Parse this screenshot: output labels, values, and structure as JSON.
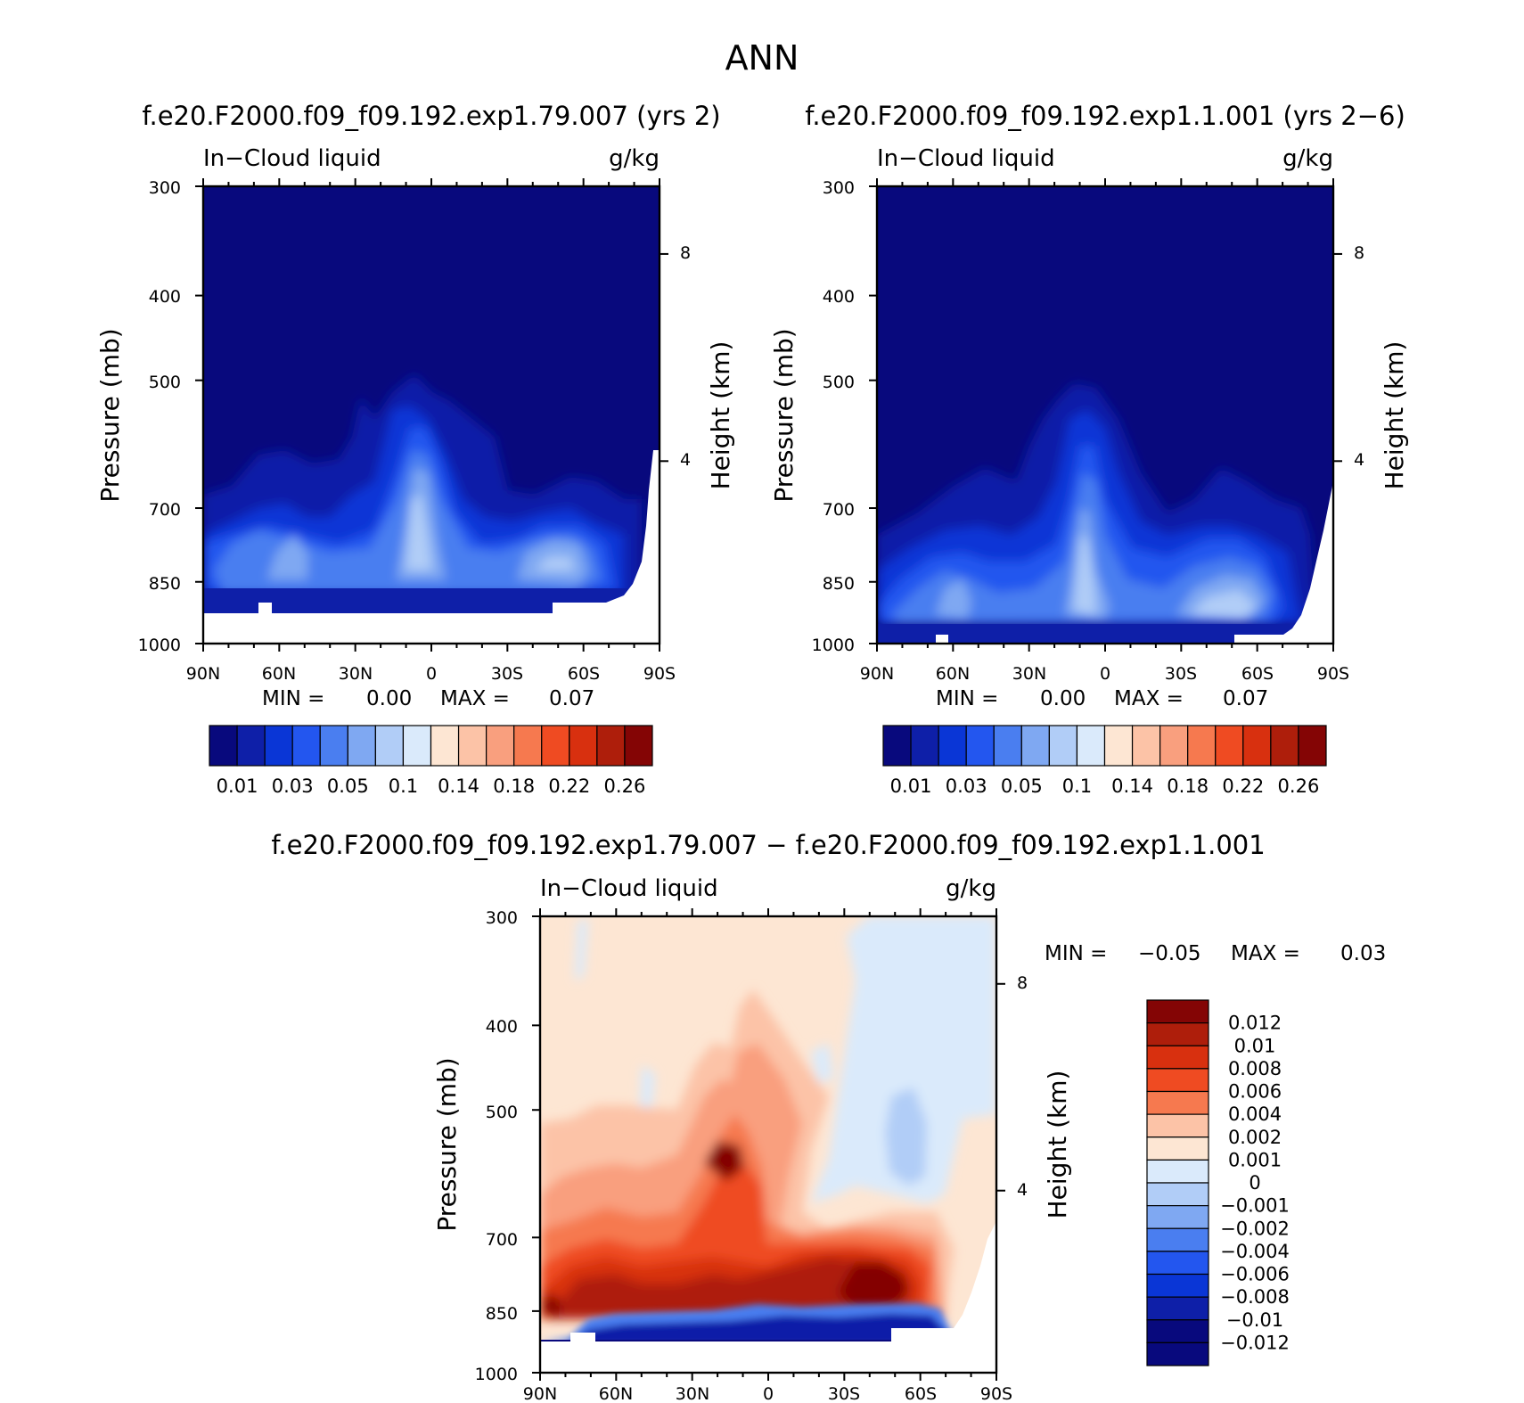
{
  "figure_title": "ANN",
  "chart_data": [
    {
      "type": "heatmap",
      "id": "top-left",
      "title": "f.e20.F2000.f09_f09.192.exp1.79.007 (yrs 2)",
      "left_label": "In−Cloud liquid",
      "right_label": "g/kg",
      "ylabel": "Pressure (mb)",
      "y2label": "Height (km)",
      "xticks": [
        "90N",
        "60N",
        "30N",
        "0",
        "30S",
        "60S",
        "90S"
      ],
      "yticks": [
        "300",
        "400",
        "500",
        "700",
        "850",
        "1000"
      ],
      "y2ticks": [
        "8",
        "4"
      ],
      "stats": {
        "min_label": "MIN =",
        "min_value": "0.00",
        "max_label": "MAX =",
        "max_value": "0.07"
      },
      "colorbar": {
        "orientation": "horizontal",
        "colors": [
          "#08097d",
          "#0e1fa8",
          "#0a36d6",
          "#2356ef",
          "#4a7ef0",
          "#7fa8f2",
          "#b1cdf7",
          "#daeafb",
          "#fde6d3",
          "#fcc3a7",
          "#f99f7e",
          "#f6794f",
          "#ef4b22",
          "#d8300f",
          "#ae1e0b",
          "#840505"
        ],
        "labels": [
          "0.01",
          "0.03",
          "0.05",
          "0.1",
          "0.14",
          "0.18",
          "0.22",
          "0.26"
        ]
      }
    },
    {
      "type": "heatmap",
      "id": "top-right",
      "title": "f.e20.F2000.f09_f09.192.exp1.1.001 (yrs 2−6)",
      "left_label": "In−Cloud liquid",
      "right_label": "g/kg",
      "ylabel": "Pressure (mb)",
      "y2label": "Height (km)",
      "xticks": [
        "90N",
        "60N",
        "30N",
        "0",
        "30S",
        "60S",
        "90S"
      ],
      "yticks": [
        "300",
        "400",
        "500",
        "700",
        "850",
        "1000"
      ],
      "y2ticks": [
        "8",
        "4"
      ],
      "stats": {
        "min_label": "MIN =",
        "min_value": "0.00",
        "max_label": "MAX =",
        "max_value": "0.07"
      },
      "colorbar": {
        "orientation": "horizontal",
        "colors": [
          "#08097d",
          "#0e1fa8",
          "#0a36d6",
          "#2356ef",
          "#4a7ef0",
          "#7fa8f2",
          "#b1cdf7",
          "#daeafb",
          "#fde6d3",
          "#fcc3a7",
          "#f99f7e",
          "#f6794f",
          "#ef4b22",
          "#d8300f",
          "#ae1e0b",
          "#840505"
        ],
        "labels": [
          "0.01",
          "0.03",
          "0.05",
          "0.1",
          "0.14",
          "0.18",
          "0.22",
          "0.26"
        ]
      }
    },
    {
      "type": "heatmap",
      "id": "difference",
      "title": "f.e20.F2000.f09_f09.192.exp1.79.007 − f.e20.F2000.f09_f09.192.exp1.1.001",
      "left_label": "In−Cloud liquid",
      "right_label": "g/kg",
      "ylabel": "Pressure (mb)",
      "y2label": "Height (km)",
      "xticks": [
        "90N",
        "60N",
        "30N",
        "0",
        "30S",
        "60S",
        "90S"
      ],
      "yticks": [
        "300",
        "400",
        "500",
        "700",
        "850",
        "1000"
      ],
      "y2ticks": [
        "8",
        "4"
      ],
      "stats": {
        "min_label": "MIN =",
        "min_value": "−0.05",
        "max_label": "MAX =",
        "max_value": "0.03"
      },
      "colorbar": {
        "orientation": "vertical",
        "colors": [
          "#840505",
          "#ae1e0b",
          "#d8300f",
          "#ef4b22",
          "#f6794f",
          "#fcc3a7",
          "#fde6d3",
          "#daeafb",
          "#b1cdf7",
          "#7fa8f2",
          "#4a7ef0",
          "#2356ef",
          "#0a36d6",
          "#0e1fa8",
          "#08097d",
          "#08097d"
        ],
        "labels": [
          "0.012",
          "0.01",
          "0.008",
          "0.006",
          "0.004",
          "0.002",
          "0.001",
          "0",
          "−0.001",
          "−0.002",
          "−0.004",
          "−0.006",
          "−0.008",
          "−0.01",
          "−0.012"
        ]
      }
    }
  ]
}
